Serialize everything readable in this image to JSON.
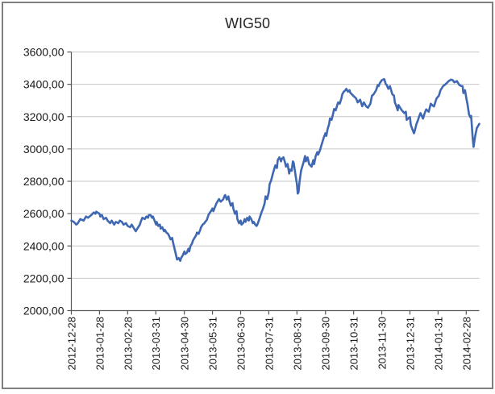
{
  "title": "WIG50",
  "chart_data": {
    "type": "line",
    "title": "WIG50",
    "legend": "none",
    "grid": "horizontal",
    "colors": {
      "series": "#4068B2",
      "gridline": "#C6C6C6",
      "axis": "#595959",
      "frame_border": "#7F7F7F",
      "background": "#FFFFFF",
      "text": "#1A1A1A"
    },
    "y_axis": {
      "min": 2000,
      "max": 3600,
      "step": 200,
      "tick_labels": [
        "2000,00",
        "2200,00",
        "2400,00",
        "2600,00",
        "2800,00",
        "3000,00",
        "3200,00",
        "3400,00",
        "3600,00"
      ]
    },
    "x_axis": {
      "tick_labels": [
        "2012-12-28",
        "2013-01-28",
        "2013-02-28",
        "2013-03-31",
        "2013-04-30",
        "2013-05-31",
        "2013-06-30",
        "2013-07-31",
        "2013-08-31",
        "2013-09-30",
        "2013-10-31",
        "2013-11-30",
        "2013-12-31",
        "2014-01-31",
        "2014-02-28"
      ],
      "tick_positions_t": [
        0.0,
        0.069,
        0.138,
        0.207,
        0.277,
        0.346,
        0.415,
        0.484,
        0.553,
        0.623,
        0.692,
        0.761,
        0.83,
        0.899,
        0.968
      ],
      "label_rotation_deg": -90
    },
    "series": [
      {
        "name": "WIG50",
        "points_format": "[t_fraction_along_x_axis, index_value]",
        "points": [
          [
            0.0,
            2557
          ],
          [
            0.006,
            2549
          ],
          [
            0.012,
            2532
          ],
          [
            0.016,
            2541
          ],
          [
            0.022,
            2566
          ],
          [
            0.03,
            2557
          ],
          [
            0.036,
            2582
          ],
          [
            0.041,
            2574
          ],
          [
            0.049,
            2591
          ],
          [
            0.055,
            2607
          ],
          [
            0.059,
            2599
          ],
          [
            0.061,
            2612
          ],
          [
            0.069,
            2599
          ],
          [
            0.071,
            2582
          ],
          [
            0.075,
            2591
          ],
          [
            0.079,
            2566
          ],
          [
            0.085,
            2574
          ],
          [
            0.089,
            2557
          ],
          [
            0.095,
            2541
          ],
          [
            0.099,
            2557
          ],
          [
            0.105,
            2532
          ],
          [
            0.109,
            2549
          ],
          [
            0.115,
            2541
          ],
          [
            0.119,
            2557
          ],
          [
            0.124,
            2549
          ],
          [
            0.128,
            2532
          ],
          [
            0.134,
            2541
          ],
          [
            0.138,
            2524
          ],
          [
            0.144,
            2516
          ],
          [
            0.148,
            2532
          ],
          [
            0.154,
            2507
          ],
          [
            0.158,
            2491
          ],
          [
            0.16,
            2500
          ],
          [
            0.164,
            2516
          ],
          [
            0.168,
            2532
          ],
          [
            0.17,
            2549
          ],
          [
            0.174,
            2574
          ],
          [
            0.18,
            2566
          ],
          [
            0.184,
            2582
          ],
          [
            0.188,
            2574
          ],
          [
            0.19,
            2591
          ],
          [
            0.194,
            2591
          ],
          [
            0.198,
            2574
          ],
          [
            0.2,
            2582
          ],
          [
            0.204,
            2557
          ],
          [
            0.208,
            2532
          ],
          [
            0.209,
            2549
          ],
          [
            0.213,
            2524
          ],
          [
            0.217,
            2532
          ],
          [
            0.219,
            2507
          ],
          [
            0.223,
            2516
          ],
          [
            0.227,
            2491
          ],
          [
            0.229,
            2500
          ],
          [
            0.233,
            2483
          ],
          [
            0.237,
            2475
          ],
          [
            0.239,
            2466
          ],
          [
            0.243,
            2441
          ],
          [
            0.247,
            2450
          ],
          [
            0.249,
            2425
          ],
          [
            0.253,
            2383
          ],
          [
            0.257,
            2341
          ],
          [
            0.259,
            2316
          ],
          [
            0.263,
            2325
          ],
          [
            0.267,
            2308
          ],
          [
            0.269,
            2325
          ],
          [
            0.273,
            2341
          ],
          [
            0.277,
            2366
          ],
          [
            0.279,
            2350
          ],
          [
            0.283,
            2358
          ],
          [
            0.287,
            2383
          ],
          [
            0.289,
            2366
          ],
          [
            0.292,
            2400
          ],
          [
            0.296,
            2416
          ],
          [
            0.298,
            2433
          ],
          [
            0.302,
            2450
          ],
          [
            0.306,
            2466
          ],
          [
            0.308,
            2483
          ],
          [
            0.312,
            2475
          ],
          [
            0.316,
            2500
          ],
          [
            0.318,
            2516
          ],
          [
            0.322,
            2532
          ],
          [
            0.326,
            2541
          ],
          [
            0.328,
            2549
          ],
          [
            0.332,
            2560
          ],
          [
            0.336,
            2590
          ],
          [
            0.338,
            2600
          ],
          [
            0.342,
            2615
          ],
          [
            0.346,
            2632
          ],
          [
            0.348,
            2615
          ],
          [
            0.352,
            2640
          ],
          [
            0.356,
            2665
          ],
          [
            0.362,
            2690
          ],
          [
            0.366,
            2674
          ],
          [
            0.372,
            2687
          ],
          [
            0.375,
            2707
          ],
          [
            0.377,
            2715
          ],
          [
            0.381,
            2687
          ],
          [
            0.385,
            2707
          ],
          [
            0.387,
            2682
          ],
          [
            0.391,
            2649
          ],
          [
            0.395,
            2665
          ],
          [
            0.397,
            2632
          ],
          [
            0.401,
            2599
          ],
          [
            0.405,
            2615
          ],
          [
            0.407,
            2566
          ],
          [
            0.411,
            2541
          ],
          [
            0.415,
            2557
          ],
          [
            0.417,
            2532
          ],
          [
            0.421,
            2541
          ],
          [
            0.425,
            2566
          ],
          [
            0.427,
            2549
          ],
          [
            0.431,
            2574
          ],
          [
            0.435,
            2557
          ],
          [
            0.437,
            2582
          ],
          [
            0.441,
            2566
          ],
          [
            0.445,
            2541
          ],
          [
            0.447,
            2549
          ],
          [
            0.451,
            2532
          ],
          [
            0.454,
            2524
          ],
          [
            0.456,
            2532
          ],
          [
            0.46,
            2560
          ],
          [
            0.466,
            2607
          ],
          [
            0.47,
            2632
          ],
          [
            0.474,
            2665
          ],
          [
            0.476,
            2707
          ],
          [
            0.48,
            2690
          ],
          [
            0.484,
            2732
          ],
          [
            0.486,
            2782
          ],
          [
            0.49,
            2807
          ],
          [
            0.494,
            2848
          ],
          [
            0.496,
            2865
          ],
          [
            0.5,
            2898
          ],
          [
            0.504,
            2882
          ],
          [
            0.506,
            2931
          ],
          [
            0.51,
            2948
          ],
          [
            0.514,
            2923
          ],
          [
            0.516,
            2940
          ],
          [
            0.52,
            2948
          ],
          [
            0.524,
            2915
          ],
          [
            0.526,
            2890
          ],
          [
            0.53,
            2907
          ],
          [
            0.534,
            2848
          ],
          [
            0.536,
            2873
          ],
          [
            0.54,
            2865
          ],
          [
            0.543,
            2923
          ],
          [
            0.545,
            2915
          ],
          [
            0.549,
            2848
          ],
          [
            0.553,
            2782
          ],
          [
            0.555,
            2724
          ],
          [
            0.557,
            2732
          ],
          [
            0.559,
            2790
          ],
          [
            0.563,
            2865
          ],
          [
            0.565,
            2882
          ],
          [
            0.569,
            2915
          ],
          [
            0.573,
            2956
          ],
          [
            0.575,
            2923
          ],
          [
            0.579,
            2948
          ],
          [
            0.583,
            2906
          ],
          [
            0.589,
            2890
          ],
          [
            0.593,
            2931
          ],
          [
            0.595,
            2906
          ],
          [
            0.599,
            2956
          ],
          [
            0.603,
            2981
          ],
          [
            0.605,
            2965
          ],
          [
            0.609,
            2989
          ],
          [
            0.613,
            3023
          ],
          [
            0.615,
            3039
          ],
          [
            0.619,
            3072
          ],
          [
            0.623,
            3097
          ],
          [
            0.625,
            3081
          ],
          [
            0.628,
            3122
          ],
          [
            0.632,
            3155
          ],
          [
            0.634,
            3189
          ],
          [
            0.638,
            3180
          ],
          [
            0.642,
            3222
          ],
          [
            0.644,
            3247
          ],
          [
            0.648,
            3239
          ],
          [
            0.652,
            3272
          ],
          [
            0.654,
            3288
          ],
          [
            0.658,
            3280
          ],
          [
            0.662,
            3313
          ],
          [
            0.664,
            3338
          ],
          [
            0.668,
            3355
          ],
          [
            0.672,
            3363
          ],
          [
            0.674,
            3372
          ],
          [
            0.678,
            3355
          ],
          [
            0.682,
            3363
          ],
          [
            0.684,
            3347
          ],
          [
            0.688,
            3338
          ],
          [
            0.694,
            3322
          ],
          [
            0.698,
            3313
          ],
          [
            0.702,
            3288
          ],
          [
            0.708,
            3305
          ],
          [
            0.713,
            3264
          ],
          [
            0.717,
            3288
          ],
          [
            0.723,
            3263
          ],
          [
            0.727,
            3255
          ],
          [
            0.733,
            3280
          ],
          [
            0.737,
            3329
          ],
          [
            0.741,
            3338
          ],
          [
            0.747,
            3363
          ],
          [
            0.751,
            3395
          ],
          [
            0.753,
            3388
          ],
          [
            0.757,
            3410
          ],
          [
            0.761,
            3425
          ],
          [
            0.767,
            3432
          ],
          [
            0.771,
            3400
          ],
          [
            0.773,
            3397
          ],
          [
            0.777,
            3372
          ],
          [
            0.781,
            3388
          ],
          [
            0.787,
            3338
          ],
          [
            0.791,
            3330
          ],
          [
            0.793,
            3288
          ],
          [
            0.796,
            3270
          ],
          [
            0.8,
            3239
          ],
          [
            0.802,
            3272
          ],
          [
            0.806,
            3255
          ],
          [
            0.81,
            3239
          ],
          [
            0.816,
            3222
          ],
          [
            0.82,
            3230
          ],
          [
            0.822,
            3180
          ],
          [
            0.826,
            3190
          ],
          [
            0.83,
            3197
          ],
          [
            0.832,
            3150
          ],
          [
            0.836,
            3122
          ],
          [
            0.84,
            3097
          ],
          [
            0.842,
            3114
          ],
          [
            0.846,
            3155
          ],
          [
            0.85,
            3180
          ],
          [
            0.852,
            3197
          ],
          [
            0.856,
            3222
          ],
          [
            0.862,
            3188
          ],
          [
            0.866,
            3220
          ],
          [
            0.87,
            3245
          ],
          [
            0.876,
            3230
          ],
          [
            0.881,
            3280
          ],
          [
            0.885,
            3270
          ],
          [
            0.889,
            3263
          ],
          [
            0.895,
            3312
          ],
          [
            0.901,
            3330
          ],
          [
            0.905,
            3363
          ],
          [
            0.911,
            3388
          ],
          [
            0.919,
            3404
          ],
          [
            0.925,
            3420
          ],
          [
            0.931,
            3429
          ],
          [
            0.935,
            3425
          ],
          [
            0.939,
            3412
          ],
          [
            0.945,
            3420
          ],
          [
            0.951,
            3396
          ],
          [
            0.955,
            3390
          ],
          [
            0.959,
            3388
          ],
          [
            0.961,
            3346
          ],
          [
            0.965,
            3363
          ],
          [
            0.969,
            3304
          ],
          [
            0.971,
            3280
          ],
          [
            0.975,
            3213
          ],
          [
            0.978,
            3196
          ],
          [
            0.98,
            3204
          ],
          [
            0.984,
            3063
          ],
          [
            0.986,
            3013
          ],
          [
            0.99,
            3080
          ],
          [
            0.994,
            3130
          ],
          [
            1.0,
            3155
          ]
        ]
      }
    ]
  }
}
